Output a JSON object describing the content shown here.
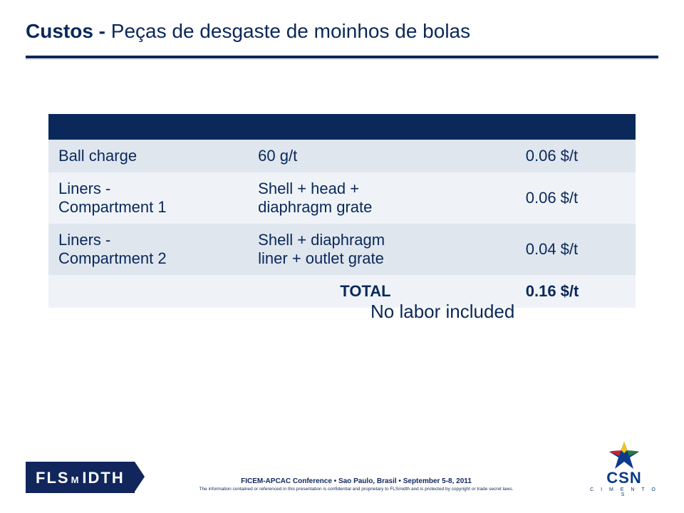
{
  "title": {
    "bold": "Custos - ",
    "rest": "Peças de desgaste de moinhos de bolas"
  },
  "colors": {
    "brand_navy": "#0a285a",
    "row_a": "#dfe6ee",
    "row_b": "#eff3f7",
    "fls_bg": "#10265c",
    "csn_blue": "#0a3a8a",
    "csn_red": "#c1272d",
    "csn_green": "#2a7a3a",
    "csn_yellow": "#f5c518"
  },
  "table": {
    "rows": [
      {
        "c1": "Ball charge",
        "c2": "60 g/t",
        "c3": "0.06 $/t",
        "shade": "a"
      },
      {
        "c1": "Liners -\nCompartment 1",
        "c2": "Shell + head +\ndiaphragm grate",
        "c3": "0.06 $/t",
        "shade": "b"
      },
      {
        "c1": "Liners -\nCompartment 2",
        "c2": "Shell + diaphragm\nliner + outlet grate",
        "c3": "0.04 $/t",
        "shade": "a"
      }
    ],
    "total": {
      "label": "TOTAL",
      "value": "0.16 $/t",
      "shade": "b"
    }
  },
  "note": "No labor included",
  "footer": {
    "fls_left": "FLS",
    "fls_mid": "M",
    "fls_right": "IDTH",
    "conf_line": "FICEM-APCAC Conference • Sao Paulo, Brasil • September 5-8, 2011",
    "legal": "The information contained or referenced in this presentation is confidential and proprietary to FLSmidth and is protected by copyright or trade secret laws.",
    "csn_name": "CSN",
    "csn_sub": "C I M E N T O S"
  }
}
